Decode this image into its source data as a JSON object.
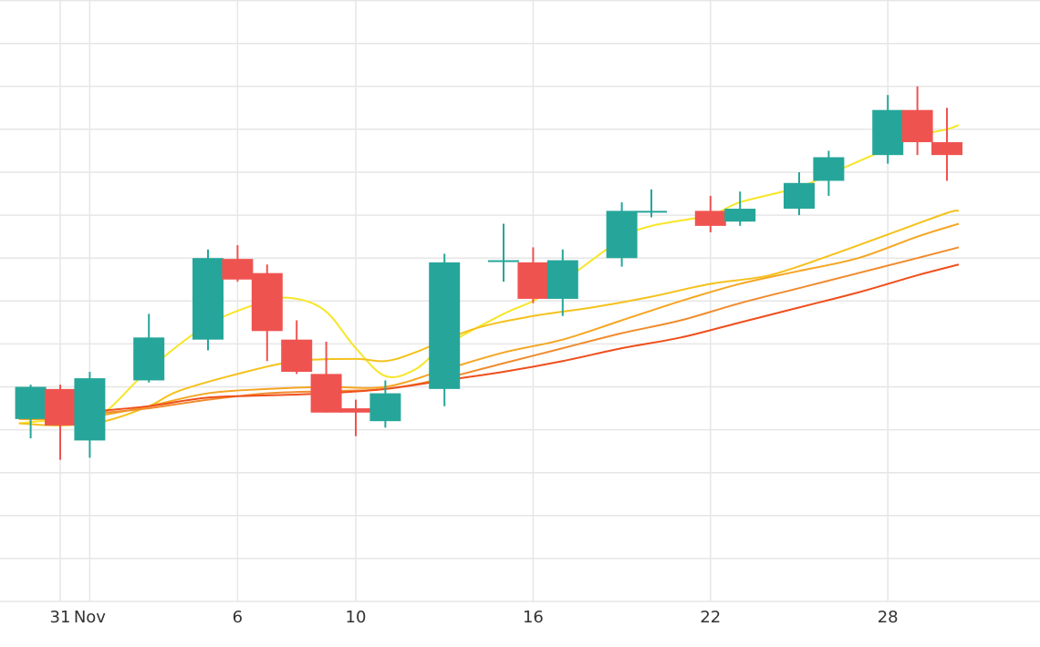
{
  "chart_data": {
    "type": "candlestick",
    "title": "",
    "xlabel": "",
    "ylabel": "",
    "x_tick_labels": [
      {
        "label": "31",
        "day": 0
      },
      {
        "label": "Nov",
        "day": 1
      },
      {
        "label": "6",
        "day": 6
      },
      {
        "label": "10",
        "day": 10
      },
      {
        "label": "16",
        "day": 16
      },
      {
        "label": "22",
        "day": 22
      },
      {
        "label": "28",
        "day": 28
      }
    ],
    "ylim": [
      0,
      14
    ],
    "ygrid_step": 1,
    "grid": true,
    "up_color": "#26a69a",
    "down_color": "#ef5350",
    "candles": [
      {
        "day": -1,
        "open": 4.25,
        "high": 5.05,
        "low": 3.8,
        "close": 5.0
      },
      {
        "day": 0,
        "open": 4.95,
        "high": 5.05,
        "low": 3.3,
        "close": 4.1
      },
      {
        "day": 1,
        "open": 3.75,
        "high": 5.35,
        "low": 3.35,
        "close": 5.2
      },
      {
        "day": 3,
        "open": 5.15,
        "high": 6.7,
        "low": 5.1,
        "close": 6.15
      },
      {
        "day": 5,
        "open": 6.1,
        "high": 8.2,
        "low": 5.85,
        "close": 8.0
      },
      {
        "day": 6,
        "open": 7.98,
        "high": 8.3,
        "low": 7.45,
        "close": 7.5
      },
      {
        "day": 7,
        "open": 7.65,
        "high": 7.85,
        "low": 5.6,
        "close": 6.3
      },
      {
        "day": 8,
        "open": 6.1,
        "high": 6.55,
        "low": 5.3,
        "close": 5.35
      },
      {
        "day": 9,
        "open": 5.3,
        "high": 6.05,
        "low": 4.4,
        "close": 4.4
      },
      {
        "day": 10,
        "open": 4.5,
        "high": 4.7,
        "low": 3.85,
        "close": 4.4
      },
      {
        "day": 11,
        "open": 4.2,
        "high": 5.15,
        "low": 4.05,
        "close": 4.85
      },
      {
        "day": 13,
        "open": 4.95,
        "high": 8.1,
        "low": 4.55,
        "close": 7.9
      },
      {
        "day": 15,
        "open": 7.95,
        "high": 8.8,
        "low": 7.45,
        "close": 7.95
      },
      {
        "day": 16,
        "open": 7.9,
        "high": 8.25,
        "low": 6.95,
        "close": 7.05
      },
      {
        "day": 17,
        "open": 7.05,
        "high": 8.2,
        "low": 6.65,
        "close": 7.95
      },
      {
        "day": 19,
        "open": 8.0,
        "high": 9.3,
        "low": 7.8,
        "close": 9.1
      },
      {
        "day": 20,
        "open": 9.1,
        "high": 9.6,
        "low": 8.95,
        "close": 9.1
      },
      {
        "day": 22,
        "open": 9.1,
        "high": 9.45,
        "low": 8.6,
        "close": 8.75
      },
      {
        "day": 23,
        "open": 8.85,
        "high": 9.55,
        "low": 8.75,
        "close": 9.15
      },
      {
        "day": 25,
        "open": 9.15,
        "high": 10.0,
        "low": 9.0,
        "close": 9.75
      },
      {
        "day": 26,
        "open": 9.8,
        "high": 10.5,
        "low": 9.45,
        "close": 10.35
      },
      {
        "day": 28,
        "open": 10.4,
        "high": 11.8,
        "low": 10.2,
        "close": 11.45
      },
      {
        "day": 29,
        "open": 11.45,
        "high": 12.0,
        "low": 10.4,
        "close": 10.7
      },
      {
        "day": 30,
        "open": 10.7,
        "high": 11.5,
        "low": 9.8,
        "close": 10.4
      }
    ],
    "series": [
      {
        "color": "#f7e628",
        "line_width": 2,
        "points": [
          [
            -1.4,
            4.15
          ],
          [
            -0.5,
            4.2
          ],
          [
            0.5,
            4.15
          ],
          [
            1.5,
            4.4
          ],
          [
            3,
            5.4
          ],
          [
            5,
            6.45
          ],
          [
            7,
            7.0
          ],
          [
            8,
            7.05
          ],
          [
            9,
            6.75
          ],
          [
            10,
            5.9
          ],
          [
            11,
            5.25
          ],
          [
            12,
            5.4
          ],
          [
            13,
            5.95
          ],
          [
            15,
            6.7
          ],
          [
            16,
            7.0
          ],
          [
            17,
            7.45
          ],
          [
            19,
            8.45
          ],
          [
            20,
            8.75
          ],
          [
            22,
            9.0
          ],
          [
            23,
            9.3
          ],
          [
            25,
            9.65
          ],
          [
            26,
            9.95
          ],
          [
            28,
            10.55
          ],
          [
            29,
            10.85
          ],
          [
            30,
            11.0
          ],
          [
            30.4,
            11.1
          ]
        ]
      },
      {
        "color": "#f5c11c",
        "line_width": 2,
        "points": [
          [
            -1.4,
            4.15
          ],
          [
            0,
            4.1
          ],
          [
            1.5,
            4.2
          ],
          [
            3,
            4.55
          ],
          [
            4,
            4.9
          ],
          [
            6,
            5.3
          ],
          [
            8,
            5.6
          ],
          [
            10,
            5.65
          ],
          [
            11,
            5.6
          ],
          [
            12,
            5.8
          ],
          [
            14,
            6.35
          ],
          [
            16,
            6.65
          ],
          [
            18,
            6.85
          ],
          [
            20,
            7.1
          ],
          [
            22,
            7.4
          ],
          [
            24,
            7.6
          ],
          [
            26,
            8.05
          ],
          [
            28,
            8.55
          ],
          [
            30,
            9.05
          ],
          [
            30.4,
            9.1
          ]
        ]
      },
      {
        "color": "#f5a623",
        "line_width": 2,
        "points": [
          [
            -1.4,
            4.25
          ],
          [
            0,
            4.25
          ],
          [
            1.5,
            4.35
          ],
          [
            3,
            4.55
          ],
          [
            5,
            4.85
          ],
          [
            7,
            4.95
          ],
          [
            9,
            5.0
          ],
          [
            11,
            5.0
          ],
          [
            13,
            5.4
          ],
          [
            15,
            5.8
          ],
          [
            17,
            6.1
          ],
          [
            19,
            6.55
          ],
          [
            21,
            7.0
          ],
          [
            23,
            7.4
          ],
          [
            25,
            7.7
          ],
          [
            27,
            8.0
          ],
          [
            29,
            8.5
          ],
          [
            30.4,
            8.8
          ]
        ]
      },
      {
        "color": "#f08c2e",
        "line_width": 2,
        "points": [
          [
            -1.4,
            4.3
          ],
          [
            0,
            4.35
          ],
          [
            1.5,
            4.4
          ],
          [
            3,
            4.5
          ],
          [
            5,
            4.7
          ],
          [
            7,
            4.85
          ],
          [
            9,
            4.9
          ],
          [
            11,
            4.95
          ],
          [
            13,
            5.2
          ],
          [
            15,
            5.55
          ],
          [
            17,
            5.9
          ],
          [
            19,
            6.25
          ],
          [
            21,
            6.55
          ],
          [
            23,
            6.95
          ],
          [
            25,
            7.3
          ],
          [
            27,
            7.65
          ],
          [
            29,
            8.0
          ],
          [
            30.4,
            8.25
          ]
        ]
      },
      {
        "color": "#ef4f1c",
        "line_width": 2,
        "points": [
          [
            -1.4,
            4.3
          ],
          [
            0,
            4.35
          ],
          [
            1.5,
            4.45
          ],
          [
            3,
            4.55
          ],
          [
            5,
            4.75
          ],
          [
            7,
            4.8
          ],
          [
            9,
            4.85
          ],
          [
            11,
            4.95
          ],
          [
            13,
            5.15
          ],
          [
            15,
            5.35
          ],
          [
            17,
            5.6
          ],
          [
            19,
            5.9
          ],
          [
            21,
            6.15
          ],
          [
            23,
            6.5
          ],
          [
            25,
            6.85
          ],
          [
            27,
            7.2
          ],
          [
            29,
            7.6
          ],
          [
            30.4,
            7.85
          ]
        ]
      }
    ]
  }
}
